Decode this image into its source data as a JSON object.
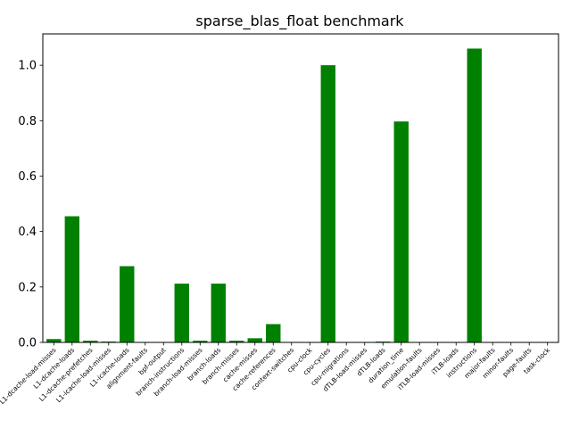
{
  "chart_data": {
    "type": "bar",
    "title": "sparse_blas_float benchmark",
    "xlabel": "",
    "ylabel": "",
    "ylim": [
      0,
      1.113
    ],
    "yticks": [
      0.0,
      0.2,
      0.4,
      0.6,
      0.8,
      1.0
    ],
    "ytick_labels": [
      "0.0",
      "0.2",
      "0.4",
      "0.6",
      "0.8",
      "1.0"
    ],
    "bar_color": "#008000",
    "grid": false,
    "categories": [
      "L1-dcache-load-misses",
      "L1-dcache-loads",
      "L1-dcache-prefetches",
      "L1-icache-load-misses",
      "L1-icache-loads",
      "alignment-faults",
      "bpf-output",
      "branch-instructions",
      "branch-load-misses",
      "branch-loads",
      "branch-misses",
      "cache-misses",
      "cache-references",
      "context-switches",
      "cpu-clock",
      "cpu-cycles",
      "cpu-migrations",
      "dTLB-load-misses",
      "dTLB-loads",
      "duration_time",
      "emulation-faults",
      "iTLB-load-misses",
      "iTLB-loads",
      "instructions",
      "major-faults",
      "minor-faults",
      "page-faults",
      "task-clock"
    ],
    "values": [
      0.012,
      0.455,
      0.006,
      0.003,
      0.275,
      0.0,
      0.0,
      0.212,
      0.006,
      0.212,
      0.006,
      0.015,
      0.066,
      0.0,
      0.0,
      1.0,
      0.0,
      0.0,
      0.003,
      0.797,
      0.0,
      0.0,
      0.0,
      1.06,
      0.0,
      0.0,
      0.0,
      0.0
    ]
  }
}
